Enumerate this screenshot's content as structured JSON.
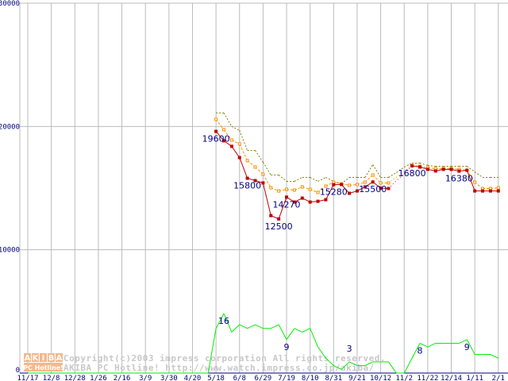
{
  "chart_data": {
    "type": "line",
    "title": "",
    "ylim": [
      0,
      30000
    ],
    "y_ticks": [
      "30000",
      "20000",
      "10000",
      "0"
    ],
    "y_tick_values": [
      30000,
      20000,
      10000,
      0
    ],
    "x_tick_labels": [
      "11/17",
      "12/8",
      "12/28",
      "1/26",
      "2/16",
      "3/9",
      "3/30",
      "4/20",
      "5/18",
      "6/8",
      "6/29",
      "7/19",
      "8/10",
      "8/31",
      "9/21",
      "10/12",
      "11/2",
      "11/22",
      "12/14",
      "1/11",
      "2/1"
    ],
    "weeks_total": 61,
    "price_start_week": 24,
    "grid": true,
    "series": [
      {
        "name": "max",
        "color": "#808000",
        "style": "dotted",
        "values": [
          21100,
          21100,
          20000,
          19680,
          18060,
          18060,
          17100,
          16060,
          16060,
          15550,
          15550,
          15870,
          15870,
          15550,
          15870,
          15550,
          15350,
          15870,
          15870,
          15870,
          16900,
          15870,
          15870,
          16260,
          16710,
          17030,
          17030,
          16840,
          16770,
          16770,
          16770,
          16770,
          16770,
          16320,
          15870,
          15870,
          15870
        ]
      },
      {
        "name": "average",
        "color": "#ff8c00",
        "style": "dashed-square",
        "values": [
          20580,
          19740,
          18900,
          18580,
          17230,
          16710,
          16130,
          15030,
          14770,
          14900,
          14840,
          15100,
          14900,
          14650,
          15160,
          15480,
          15350,
          15230,
          15290,
          15480,
          16060,
          15420,
          15420,
          null,
          null,
          16840,
          16770,
          16640,
          16580,
          16580,
          16580,
          16520,
          16450,
          15480,
          14970,
          14970,
          15030
        ]
      },
      {
        "name": "min",
        "color": "#c00000",
        "style": "solid-square",
        "values": [
          19600,
          18840,
          18390,
          17480,
          15800,
          15610,
          15420,
          12770,
          12500,
          14270,
          13870,
          14190,
          13870,
          13930,
          14060,
          15280,
          15290,
          14580,
          14770,
          15100,
          15500,
          15000,
          14970,
          null,
          null,
          16800,
          16710,
          16520,
          16390,
          16520,
          16520,
          16380,
          16450,
          14770,
          14770,
          14770,
          14770
        ]
      },
      {
        "name": "shops",
        "color": "#00ee00",
        "style": "solid",
        "scale_max": 16,
        "values": [
          0,
          0,
          0,
          0,
          0,
          0,
          0,
          0,
          0,
          0,
          0,
          0,
          0,
          0,
          0,
          0,
          0,
          0,
          0,
          0,
          0,
          0,
          0,
          0,
          12,
          16,
          11,
          13,
          12,
          13,
          12,
          12,
          13,
          9,
          12,
          11,
          12,
          7,
          4,
          2,
          1,
          3,
          2,
          2,
          3,
          3,
          3,
          0,
          0,
          4,
          8,
          7,
          8,
          8,
          8,
          8,
          9,
          5,
          5,
          5,
          4
        ]
      }
    ],
    "annotations": [
      {
        "text": "19600",
        "series": "min",
        "index": 0
      },
      {
        "text": "15800",
        "series": "min",
        "index": 4
      },
      {
        "text": "12500",
        "series": "min",
        "index": 8
      },
      {
        "text": "14270",
        "series": "min",
        "index": 9
      },
      {
        "text": "15280",
        "series": "min",
        "index": 15
      },
      {
        "text": "15500",
        "series": "min",
        "index": 20
      },
      {
        "text": "16800",
        "series": "min",
        "index": 25
      },
      {
        "text": "16380",
        "series": "min",
        "index": 31
      },
      {
        "text": "16",
        "series": "shops",
        "index": 25
      },
      {
        "text": "9",
        "series": "shops",
        "index": 33
      },
      {
        "text": "3",
        "series": "shops",
        "index": 41
      },
      {
        "text": "8",
        "series": "shops",
        "index": 50
      },
      {
        "text": "9",
        "series": "shops",
        "index": 56
      }
    ]
  },
  "watermark": {
    "logo_letters": [
      "A",
      "K",
      "I",
      "B",
      "A"
    ],
    "logo_sub": "PC Hotline!",
    "line1": "Copyright(c)2003 impress corporation All rights reserved.",
    "line2": "AKIBA PC Hotline! http://www.watch.impress.co.jp/akiba/"
  }
}
